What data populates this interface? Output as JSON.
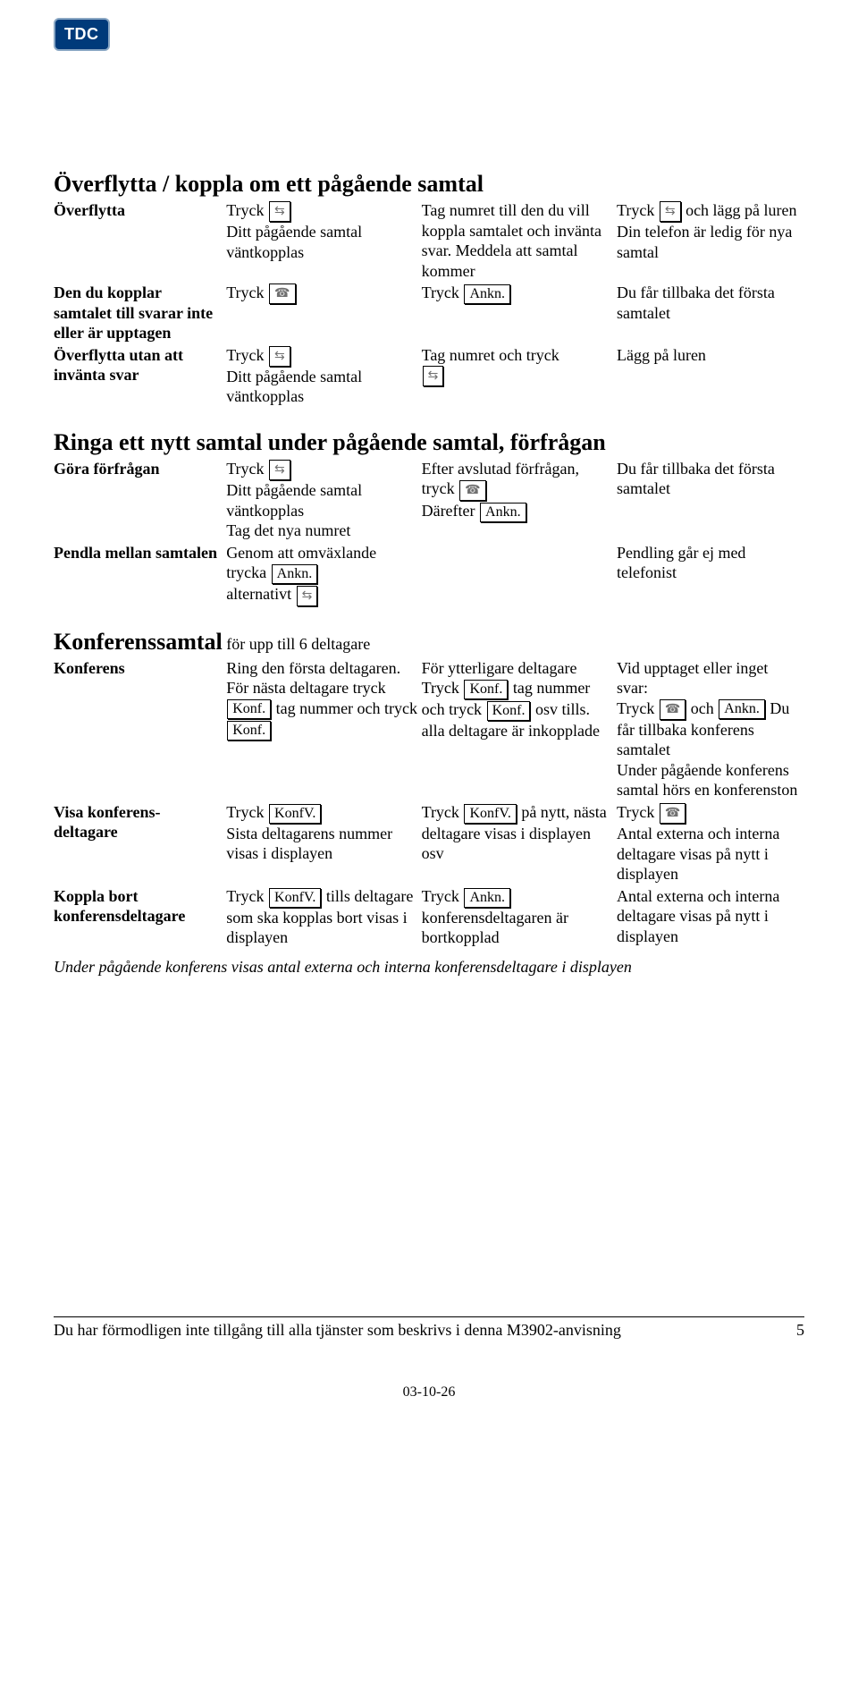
{
  "logo_text": "TDC",
  "s1": {
    "title": "Överflytta / koppla om ett pågående samtal",
    "r1": {
      "label": "Överflytta",
      "c2a": "Tryck ",
      "c2b": "Ditt pågående samtal väntkopplas",
      "c3": "Tag numret till den du vill koppla samtalet och invänta svar. Meddela att samtal kommer",
      "c4a": "Tryck ",
      "c4b": " och lägg på luren",
      "c4c": "Din telefon är ledig för nya samtal"
    },
    "r2": {
      "label": "Den du kopplar samtalet till svarar inte eller är upptagen",
      "c2": "Tryck ",
      "c3a": "Tryck ",
      "c3btn": "Ankn.",
      "c4": "Du får tillbaka det första samtalet"
    },
    "r3": {
      "label": "Överflytta utan att invänta svar",
      "c2a": "Tryck ",
      "c2b": "Ditt pågående samtal väntkopplas",
      "c3": "Tag numret och tryck ",
      "c4": "Lägg på luren"
    }
  },
  "s2": {
    "title": "Ringa ett nytt samtal under pågående samtal, förfrågan",
    "r1": {
      "label": "Göra förfrågan",
      "c2a": "Tryck ",
      "c2b": "Ditt pågående samtal väntkopplas",
      "c2c": "Tag det nya numret",
      "c3a": "Efter avslutad förfrågan, tryck ",
      "c3b": "Därefter ",
      "c3btn": "Ankn.",
      "c4": "Du får tillbaka det första samtalet"
    },
    "r2": {
      "label": "Pendla mellan samtalen",
      "c2a": "Genom att omväxlande trycka ",
      "c2btn": "Ankn.",
      "c2b": "alternativt ",
      "c4": "Pendling går ej med telefonist"
    }
  },
  "s3": {
    "title": "Konferenssamtal",
    "subtitle": " för upp till 6 deltagare",
    "r1": {
      "label": "Konferens",
      "c2a": "Ring den första deltagaren.",
      "c2b": "För nästa deltagare tryck ",
      "c2btn1": "Konf.",
      "c2c": " tag nummer och tryck ",
      "c2btn2": "Konf.",
      "c3a": "För ytterligare deltagare",
      "c3b": "Tryck ",
      "c3btn1": "Konf.",
      "c3c": " tag nummer och tryck ",
      "c3btn2": "Konf.",
      "c3d": " osv tills. alla deltagare är inkopplade",
      "c4a": "Vid upptaget eller inget svar:",
      "c4b": "Tryck ",
      "c4c": " och ",
      "c4btn": "Ankn.",
      "c4d": " Du får tillbaka konferens samtalet",
      "c4e": "Under pågående konferens samtal hörs en konferenston"
    },
    "r2": {
      "label": "Visa konferens-deltagare",
      "c2a": "Tryck ",
      "c2btn": "KonfV.",
      "c2b": "Sista deltagarens nummer visas i displayen",
      "c3a": "Tryck ",
      "c3btn": "KonfV.",
      "c3b": " på nytt, nästa deltagare visas i displayen osv",
      "c4a": "Tryck ",
      "c4b": "Antal externa och interna deltagare visas på nytt i displayen"
    },
    "r3": {
      "label": "Koppla bort konferensdeltagare",
      "c2a": "Tryck ",
      "c2btn": "KonfV.",
      "c2b": " tills deltagare som ska kopplas bort visas i displayen",
      "c3a": "Tryck ",
      "c3btn": "Ankn.",
      "c3b": "konferensdeltagaren är bortkopplad",
      "c4": "Antal externa och interna deltagare visas på nytt i displayen"
    },
    "note": "Under pågående konferens visas antal externa och interna konferensdeltagare i displayen"
  },
  "footer": {
    "text": "Du har förmodligen inte tillgång till alla tjänster som beskrivs i denna M3902-anvisning",
    "page": "5",
    "date": "03-10-26"
  }
}
